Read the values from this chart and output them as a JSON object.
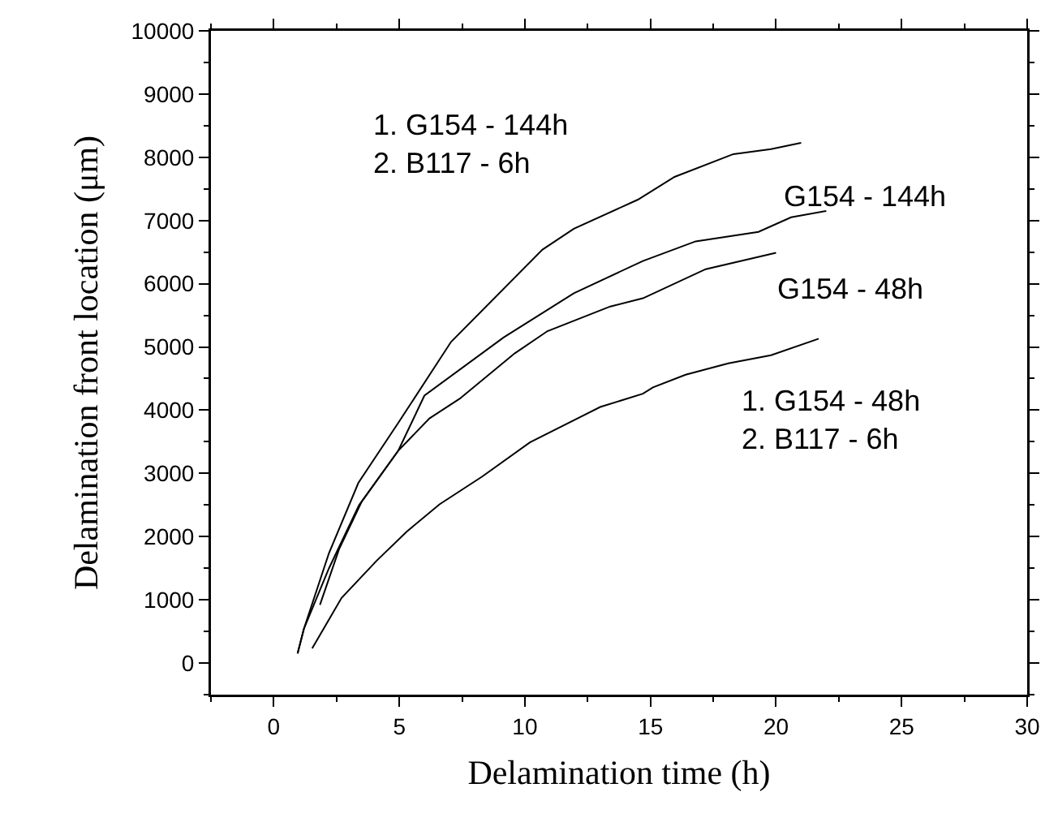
{
  "chart_data": {
    "type": "line",
    "xlabel": "Delamination time (h)",
    "ylabel": "Delamination front location (μm)",
    "xlim": [
      -2.5,
      30
    ],
    "ylim": [
      -500,
      10000
    ],
    "xticks": [
      0,
      5,
      10,
      15,
      20,
      25,
      30
    ],
    "yticks": [
      0,
      1000,
      2000,
      3000,
      4000,
      5000,
      6000,
      7000,
      8000,
      9000,
      10000
    ],
    "grid": false,
    "legend": false,
    "marker": "none",
    "line_style": "solid",
    "series": [
      {
        "name": "1. G154 - 144h\n2. B117 - 6h",
        "color": "#000000",
        "x": [
          0.95,
          1.2,
          2.2,
          3.37,
          4.96,
          7.06,
          10.7,
          11.95,
          14.5,
          15.96,
          18.3,
          19.8,
          21.0
        ],
        "values": [
          150,
          540,
          1740,
          2850,
          3800,
          5080,
          6540,
          6870,
          7330,
          7690,
          8050,
          8130,
          8230
        ]
      },
      {
        "name": "G154 - 144h",
        "color": "#000000",
        "x": [
          0.95,
          1.2,
          2.2,
          3.4,
          4.96,
          6.0,
          9.15,
          11.95,
          14.7,
          16.8,
          19.3,
          20.6,
          22.0
        ],
        "values": [
          150,
          540,
          1500,
          2500,
          3360,
          4230,
          5150,
          5850,
          6360,
          6670,
          6820,
          7050,
          7150
        ]
      },
      {
        "name": "G154 - 48h",
        "color": "#000000",
        "x": [
          1.84,
          2.6,
          3.5,
          4.96,
          6.2,
          7.4,
          9.6,
          10.9,
          13.4,
          14.7,
          17.2,
          20.0
        ],
        "values": [
          920,
          1800,
          2550,
          3360,
          3870,
          4180,
          4900,
          5250,
          5640,
          5770,
          6230,
          6490
        ]
      },
      {
        "name": "1. G154 - 48h\n2. B117 - 6h",
        "color": "#000000",
        "x": [
          1.53,
          2.7,
          4.1,
          5.3,
          6.6,
          8.3,
          10.2,
          13.0,
          14.7,
          15.1,
          16.4,
          18.1,
          19.8,
          21.7
        ],
        "values": [
          230,
          1030,
          1620,
          2080,
          2510,
          2950,
          3490,
          4050,
          4260,
          4360,
          4560,
          4740,
          4870,
          5130
        ]
      }
    ]
  }
}
